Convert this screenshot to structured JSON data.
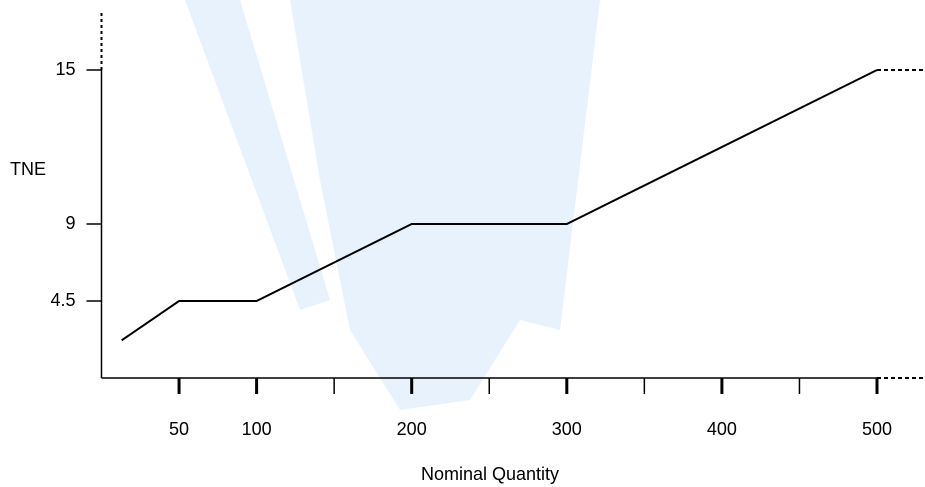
{
  "chart_data": {
    "type": "line",
    "x_label": "Nominal Quantity",
    "y_label": "TNE",
    "x": [
      13,
      50,
      100,
      200,
      300,
      500
    ],
    "series": [
      {
        "values": [
          2.2,
          4.5,
          4.5,
          9,
          9,
          15
        ],
        "color": "#000000"
      }
    ],
    "xlim": [
      0,
      500
    ],
    "xticks": [
      50,
      100,
      200,
      300,
      400,
      500
    ],
    "xminor_ticks": [
      150,
      250,
      350,
      450
    ],
    "ylim": [
      0,
      15
    ],
    "yticks": [
      4.5,
      9,
      15
    ]
  }
}
